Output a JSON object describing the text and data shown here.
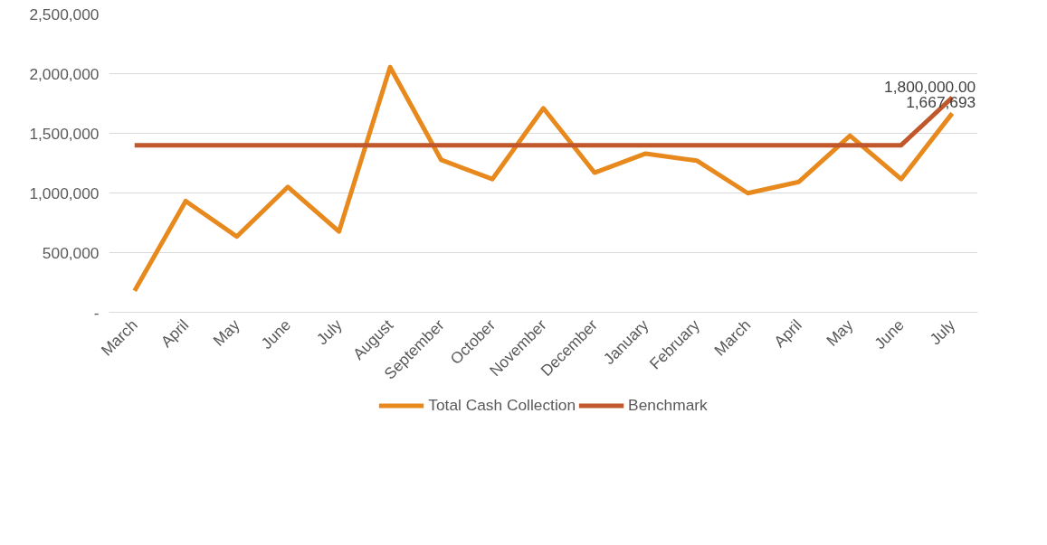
{
  "chart_data": {
    "type": "line",
    "categories": [
      "March",
      "April",
      "May",
      "June",
      "July",
      "August",
      "September",
      "October",
      "November",
      "December",
      "January",
      "February",
      "March",
      "April",
      "May",
      "June",
      "July"
    ],
    "series": [
      {
        "name": "Total Cash Collection",
        "color": "#e8891d",
        "values": [
          180000,
          932000,
          635000,
          1051000,
          677000,
          2055000,
          1277000,
          1116000,
          1710000,
          1170000,
          1330000,
          1271000,
          998000,
          1093000,
          1480000,
          1116000,
          1667693
        ],
        "value_labels": [
          null,
          null,
          null,
          null,
          null,
          null,
          null,
          null,
          null,
          null,
          null,
          null,
          null,
          null,
          null,
          null,
          "1,667,693"
        ]
      },
      {
        "name": "Benchmark",
        "color": "#c0582b",
        "values": [
          1400000,
          1400000,
          1400000,
          1400000,
          1400000,
          1400000,
          1400000,
          1400000,
          1400000,
          1400000,
          1400000,
          1400000,
          1400000,
          1400000,
          1400000,
          1400000,
          1800000
        ],
        "value_labels": [
          null,
          null,
          null,
          null,
          null,
          null,
          null,
          null,
          null,
          null,
          null,
          null,
          null,
          null,
          null,
          null,
          "1,800,000.00"
        ]
      }
    ],
    "ylim": [
      0,
      2500000
    ],
    "yticks": [
      {
        "value": 0,
        "label": "-"
      },
      {
        "value": 500000,
        "label": "500,000"
      },
      {
        "value": 1000000,
        "label": "1,000,000"
      },
      {
        "value": 1500000,
        "label": "1,500,000"
      },
      {
        "value": 2000000,
        "label": "2,000,000"
      },
      {
        "value": 2500000,
        "label": "2,500,000"
      }
    ],
    "grid": "y",
    "legend": "bottom",
    "marker": "none",
    "line_style": "solid"
  }
}
